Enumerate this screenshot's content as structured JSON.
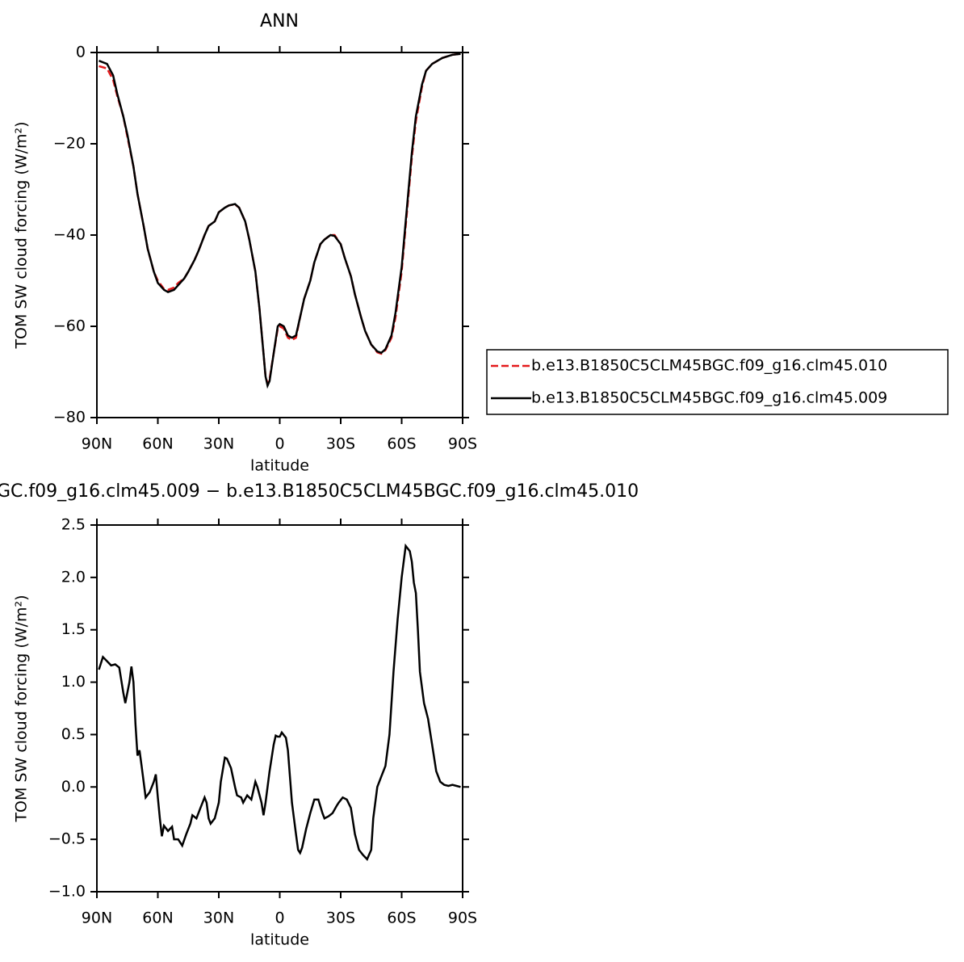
{
  "chart_data": [
    {
      "type": "line",
      "title": "ANN",
      "x_label": "latitude",
      "y_label": "TOM SW cloud forcing (W/m²)",
      "xlim": [
        90,
        -90
      ],
      "ylim": [
        -80,
        0
      ],
      "xticks": [
        {
          "value": 90,
          "label": "90N"
        },
        {
          "value": 60,
          "label": "60N"
        },
        {
          "value": 30,
          "label": "30N"
        },
        0,
        {
          "value": -30,
          "label": "30S"
        },
        {
          "value": -60,
          "label": "60S"
        },
        {
          "value": -90,
          "label": "90S"
        }
      ],
      "yticks": [
        {
          "value": -80,
          "label": "−80"
        },
        {
          "value": -60,
          "label": "−60"
        },
        {
          "value": -40,
          "label": "−40"
        },
        {
          "value": -20,
          "label": "−20"
        },
        0
      ],
      "legend": "right",
      "x": [
        89,
        85,
        82,
        80,
        77,
        75,
        72,
        70,
        67,
        65,
        62,
        60,
        57,
        55,
        52,
        50,
        47,
        45,
        42,
        40,
        37,
        35,
        32,
        30,
        27,
        25,
        22,
        20,
        17,
        15,
        12,
        10,
        8,
        7,
        6,
        5,
        3,
        1,
        0,
        -2,
        -4,
        -6,
        -8,
        -10,
        -12,
        -15,
        -17,
        -20,
        -22,
        -25,
        -27,
        -30,
        -32,
        -35,
        -37,
        -40,
        -42,
        -45,
        -48,
        -50,
        -52,
        -55,
        -57,
        -60,
        -62,
        -65,
        -67,
        -70,
        -72,
        -75,
        -80,
        -85,
        -89
      ],
      "series": [
        {
          "name": "b.e13.B1850C5CLM45BGC.f09_g16.clm45.010",
          "color": "#e41a1c",
          "dash": true,
          "values": [
            -3,
            -3.5,
            -6,
            -9.5,
            -14,
            -18.5,
            -25,
            -31,
            -38,
            -43,
            -48,
            -50,
            -51.8,
            -52,
            -51.5,
            -50.5,
            -49.5,
            -48,
            -45.5,
            -43.5,
            -40,
            -38,
            -37,
            -35,
            -34,
            -33.5,
            -33.3,
            -34,
            -37,
            -41,
            -48,
            -56,
            -66,
            -71,
            -72.5,
            -71.5,
            -66,
            -60.5,
            -60,
            -60.5,
            -62.5,
            -63,
            -62.5,
            -58,
            -54,
            -50,
            -46,
            -42,
            -41,
            -40,
            -40,
            -42,
            -45,
            -49,
            -53,
            -58,
            -61,
            -64,
            -65.7,
            -66,
            -65.2,
            -62.5,
            -58,
            -48,
            -38,
            -23,
            -15,
            -7.5,
            -4,
            -2.5,
            -1.2,
            -0.5,
            -0.3
          ]
        },
        {
          "name": "b.e13.B1850C5CLM45BGC.f09_g16.clm45.009",
          "color": "#000000",
          "dash": false,
          "values": [
            -1.8,
            -2.5,
            -5,
            -9,
            -14,
            -18,
            -25,
            -31,
            -38,
            -43,
            -48,
            -50.5,
            -52,
            -52.5,
            -52,
            -51,
            -49.5,
            -48,
            -45.5,
            -43.5,
            -40,
            -38,
            -37,
            -35,
            -34,
            -33.5,
            -33.2,
            -34,
            -37,
            -41,
            -48,
            -56,
            -66,
            -71,
            -73,
            -72,
            -66,
            -60,
            -59.5,
            -60,
            -62,
            -62.5,
            -62,
            -58,
            -54,
            -50,
            -46,
            -42,
            -41,
            -40,
            -40.2,
            -42,
            -45,
            -49,
            -53,
            -58,
            -61,
            -64,
            -65.5,
            -65.8,
            -65,
            -62,
            -57,
            -47,
            -37,
            -22,
            -14,
            -7,
            -4,
            -2.5,
            -1.2,
            -0.5,
            -0.3
          ]
        }
      ]
    },
    {
      "type": "line",
      "title": "GC.f09_g16.clm45.009 − b.e13.B1850C5CLM45BGC.f09_g16.clm45.010",
      "x_label": "latitude",
      "y_label": "TOM SW cloud forcing (W/m²)",
      "xlim": [
        90,
        -90
      ],
      "ylim": [
        -1,
        2.5
      ],
      "xticks": [
        {
          "value": 90,
          "label": "90N"
        },
        {
          "value": 60,
          "label": "60N"
        },
        {
          "value": 30,
          "label": "30N"
        },
        0,
        {
          "value": -30,
          "label": "30S"
        },
        {
          "value": -60,
          "label": "60S"
        },
        {
          "value": -90,
          "label": "90S"
        }
      ],
      "yticks": [
        {
          "value": -1,
          "label": "−1.0"
        },
        {
          "value": -0.5,
          "label": "−0.5"
        },
        {
          "value": 0,
          "label": "0.0"
        },
        0.5,
        {
          "value": 1,
          "label": "1.0"
        },
        1.5,
        {
          "value": 2,
          "label": "2.0"
        },
        2.5
      ],
      "x": [
        89,
        87,
        85,
        83,
        81,
        79,
        77,
        76,
        74,
        73,
        72,
        71,
        70,
        69,
        68,
        67,
        66,
        64,
        62,
        61,
        60,
        59,
        58,
        57,
        55,
        53,
        52,
        50,
        48,
        46,
        44,
        43,
        41,
        39,
        37,
        36,
        35,
        34,
        32,
        30,
        29,
        27,
        26,
        24,
        22,
        21,
        19,
        18,
        16,
        14,
        12,
        11,
        9,
        8,
        7,
        5,
        3,
        2,
        1,
        0,
        -1,
        -3,
        -4,
        -5,
        -6,
        -8,
        -9,
        -10,
        -11,
        -13,
        -15,
        -17,
        -19,
        -21,
        -22,
        -24,
        -26,
        -28,
        -29,
        -31,
        -33,
        -35,
        -37,
        -39,
        -41,
        -43,
        -45,
        -46,
        -48,
        -50,
        -52,
        -54,
        -56,
        -58,
        -60,
        -62,
        -64,
        -65,
        -66,
        -67,
        -68,
        -69,
        -71,
        -73,
        -75,
        -77,
        -79,
        -81,
        -83,
        -85,
        -87,
        -89
      ],
      "series": [
        {
          "color": "#000000",
          "dash": false,
          "values": [
            1.12,
            1.24,
            1.2,
            1.16,
            1.17,
            1.14,
            0.9,
            0.8,
            1.0,
            1.15,
            1.0,
            0.6,
            0.3,
            0.35,
            0.2,
            0.05,
            -0.1,
            -0.05,
            0.05,
            0.12,
            -0.1,
            -0.3,
            -0.47,
            -0.37,
            -0.42,
            -0.38,
            -0.5,
            -0.5,
            -0.56,
            -0.45,
            -0.35,
            -0.27,
            -0.3,
            -0.2,
            -0.1,
            -0.15,
            -0.3,
            -0.35,
            -0.3,
            -0.15,
            0.05,
            0.28,
            0.27,
            0.18,
            0.0,
            -0.08,
            -0.1,
            -0.15,
            -0.08,
            -0.12,
            0.05,
            0.0,
            -0.15,
            -0.27,
            -0.15,
            0.15,
            0.4,
            0.49,
            0.48,
            0.48,
            0.52,
            0.47,
            0.35,
            0.1,
            -0.15,
            -0.45,
            -0.6,
            -0.63,
            -0.58,
            -0.4,
            -0.25,
            -0.12,
            -0.12,
            -0.25,
            -0.3,
            -0.28,
            -0.25,
            -0.18,
            -0.15,
            -0.1,
            -0.12,
            -0.2,
            -0.45,
            -0.6,
            -0.65,
            -0.69,
            -0.6,
            -0.3,
            0.0,
            0.1,
            0.2,
            0.5,
            1.1,
            1.6,
            2.0,
            2.3,
            2.25,
            2.15,
            1.95,
            1.85,
            1.5,
            1.1,
            0.8,
            0.65,
            0.4,
            0.15,
            0.05,
            0.02,
            0.01,
            0.02,
            0.01,
            0.0
          ]
        }
      ]
    }
  ]
}
